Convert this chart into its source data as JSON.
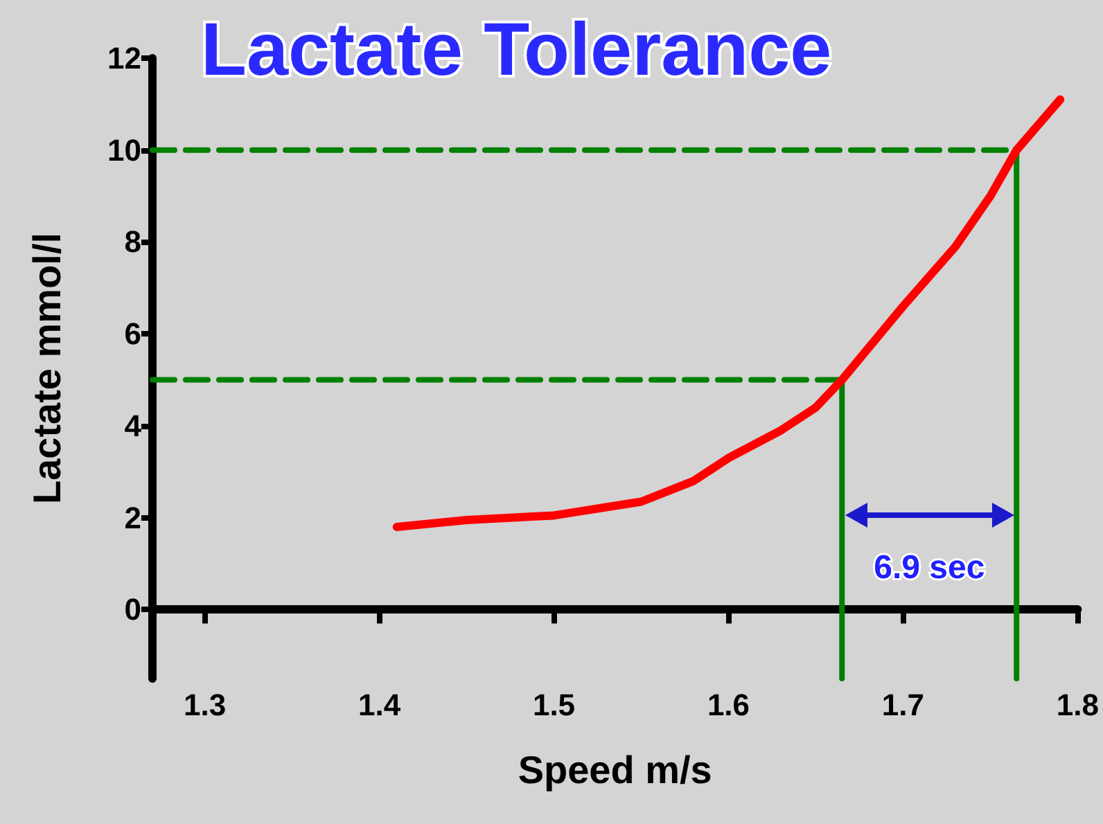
{
  "chart_data": {
    "type": "line",
    "title": "Lactate Tolerance",
    "xlabel": "Speed m/s",
    "ylabel": "Lactate mmol/l",
    "xlim": [
      1.27,
      1.8
    ],
    "xticks": [
      1.3,
      1.4,
      1.5,
      1.6,
      1.7,
      1.8
    ],
    "ylim": [
      -1.5,
      12
    ],
    "yticks": [
      0,
      2,
      4,
      6,
      8,
      10,
      12
    ],
    "grid": false,
    "marker": "none",
    "series": [
      {
        "color": "#ff0000",
        "x": [
          1.41,
          1.45,
          1.5,
          1.55,
          1.58,
          1.6,
          1.63,
          1.65,
          1.665,
          1.7,
          1.73,
          1.75,
          1.765,
          1.79
        ],
        "values": [
          1.8,
          1.95,
          2.05,
          2.35,
          2.8,
          3.3,
          3.9,
          4.4,
          5.0,
          6.6,
          7.9,
          9.0,
          10.0,
          11.1
        ]
      },
      {
        "type": "line",
        "color": "#008000",
        "line_style": "dashed",
        "x": [
          1.27,
          1.665
        ],
        "values": [
          5,
          5
        ]
      },
      {
        "type": "line",
        "color": "#008000",
        "line_style": "dashed",
        "x": [
          1.27,
          1.765
        ],
        "values": [
          10,
          10
        ]
      },
      {
        "type": "line",
        "color": "#008000",
        "line_style": "solid",
        "x": [
          1.665,
          1.665
        ],
        "values": [
          5,
          -1.5
        ]
      },
      {
        "type": "line",
        "color": "#008000",
        "line_style": "solid",
        "x": [
          1.765,
          1.765
        ],
        "values": [
          10,
          -1.5
        ]
      }
    ],
    "annotations": [
      "6.9 sec"
    ]
  }
}
